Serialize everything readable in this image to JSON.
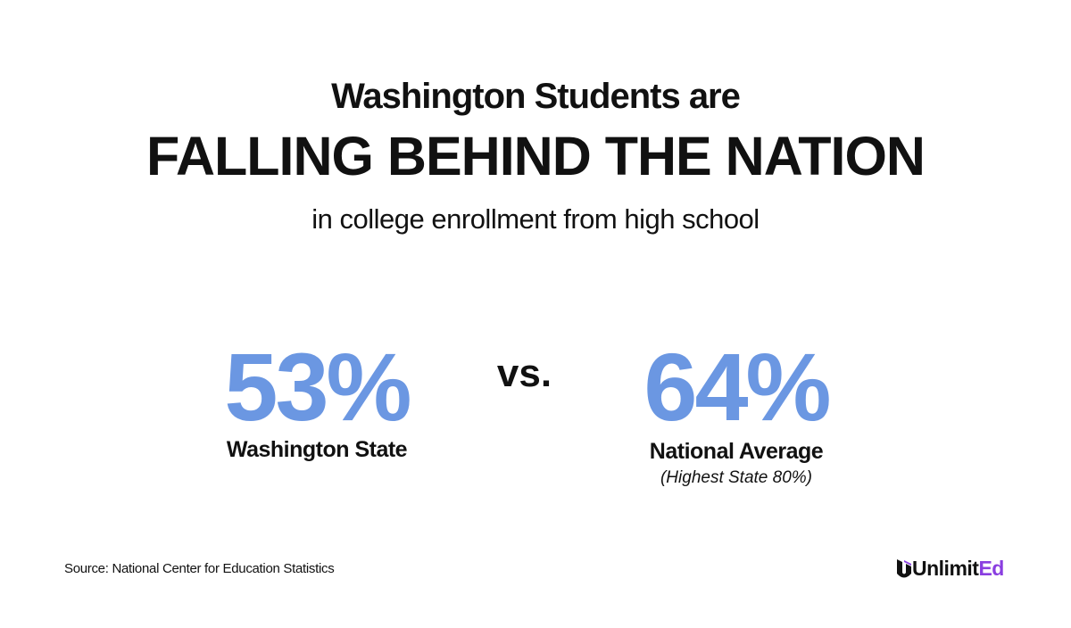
{
  "header": {
    "title_line1": "Washington Students are",
    "title_line2": "FALLING BEHIND THE NATION",
    "subtitle": "in college enrollment from high school"
  },
  "stats": [
    {
      "value": "53%",
      "label": "Washington State"
    },
    {
      "value": "64%",
      "label": "National Average",
      "note": "(Highest State 80%)"
    }
  ],
  "separator": "vs.",
  "footer": {
    "source": "Source: National Center for Education Statistics",
    "logo": [
      "Unlimit",
      "Ed"
    ]
  }
}
